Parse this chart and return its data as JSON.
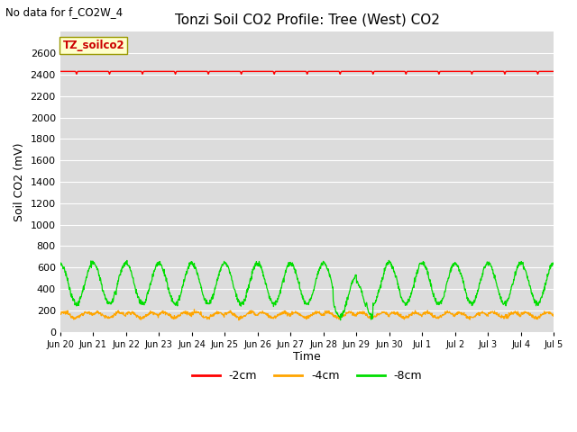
{
  "title": "Tonzi Soil CO2 Profile: Tree (West) CO2",
  "top_left_text": "No data for f_CO2W_4",
  "ylabel": "Soil CO2 (mV)",
  "xlabel": "Time",
  "legend_label": "TZ_soilco2",
  "series_labels": [
    "-2cm",
    "-4cm",
    "-8cm"
  ],
  "series_colors": [
    "#ff0000",
    "#ffa500",
    "#00dd00"
  ],
  "ylim": [
    0,
    2800
  ],
  "yticks": [
    0,
    200,
    400,
    600,
    800,
    1000,
    1200,
    1400,
    1600,
    1800,
    2000,
    2200,
    2400,
    2600
  ],
  "bg_color": "#dcdcdc",
  "red_line_value": 2430,
  "orange_mean": 155,
  "green_mean": 450,
  "green_amplitude": 190,
  "num_days": 15,
  "xtick_labels": [
    "Jun 20",
    "Jun 21",
    "Jun 22",
    "Jun 23",
    "Jun 24",
    "Jun 25",
    "Jun 26",
    "Jun 27",
    "Jun 28",
    "Jun 29",
    "Jun 30",
    "Jul 1",
    "Jul 2",
    "Jul 3",
    "Jul 4",
    "Jul 5"
  ],
  "figsize": [
    6.4,
    4.8
  ],
  "dpi": 100
}
